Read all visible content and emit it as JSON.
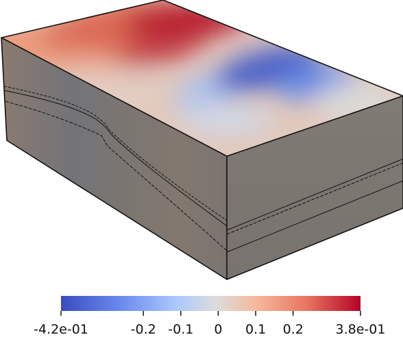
{
  "colorbar": {
    "min_label": "-4.2e-01",
    "max_label": "3.8e-01",
    "range": [
      -0.42,
      0.38
    ],
    "ticks": [
      {
        "value": -0.2,
        "label": "-0.2"
      },
      {
        "value": -0.1,
        "label": "-0.1"
      },
      {
        "value": 0,
        "label": "0"
      },
      {
        "value": 0.1,
        "label": "0.1"
      },
      {
        "value": 0.2,
        "label": "0.2"
      }
    ],
    "colormap": "cool-to-warm",
    "colors": {
      "low": "#3b4cc0",
      "mid": "#dddddd",
      "high": "#b40426"
    }
  },
  "model": {
    "side_face_color": "#7c7670",
    "edge_color": "#111111"
  }
}
